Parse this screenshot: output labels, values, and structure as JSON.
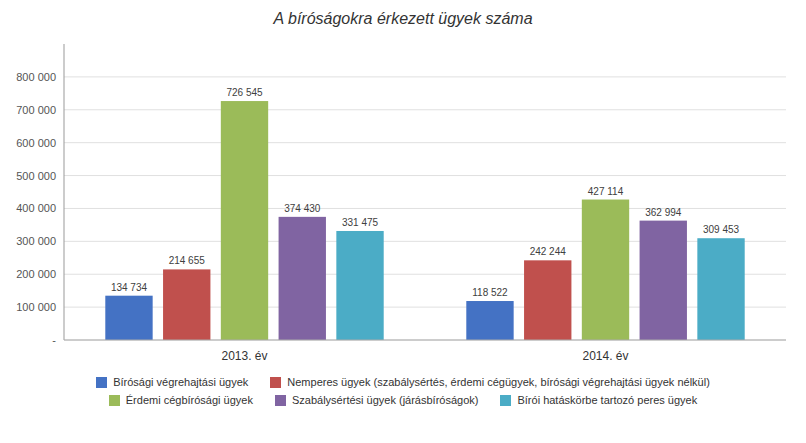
{
  "chart_data": {
    "type": "bar",
    "title": "A bíróságokra érkezett ügyek száma",
    "categories": [
      "2013. év",
      "2014. év"
    ],
    "series": [
      {
        "name": "Bírósági végrehajtási ügyek",
        "color": "#4472C4",
        "values": [
          134734,
          118522
        ],
        "value_labels": [
          "134 734",
          "118 522"
        ]
      },
      {
        "name": "Nemperes ügyek (szabálysértés, érdemi cégügyek, bírósági végrehajtási ügyek nélkül)",
        "color": "#C0504D",
        "values": [
          214655,
          242244
        ],
        "value_labels": [
          "214 655",
          "242 244"
        ]
      },
      {
        "name": "Érdemi cégbírósági ügyek",
        "color": "#9BBB59",
        "values": [
          726545,
          427114
        ],
        "value_labels": [
          "726 545",
          "427 114"
        ]
      },
      {
        "name": "Szabálysértési ügyek (járásbíróságok)",
        "color": "#8064A2",
        "values": [
          374430,
          362994
        ],
        "value_labels": [
          "374 430",
          "362 994"
        ]
      },
      {
        "name": "Bírói hatáskörbe tartozó peres ügyek",
        "color": "#4BACC6",
        "values": [
          331475,
          309453
        ],
        "value_labels": [
          "331 475",
          "309 453"
        ]
      }
    ],
    "ylim": [
      0,
      900000
    ],
    "yticks": [
      {
        "value": 0,
        "label": "-"
      },
      {
        "value": 100000,
        "label": "100 000"
      },
      {
        "value": 200000,
        "label": "200 000"
      },
      {
        "value": 300000,
        "label": "300 000"
      },
      {
        "value": 400000,
        "label": "400 000"
      },
      {
        "value": 500000,
        "label": "500 000"
      },
      {
        "value": 600000,
        "label": "600 000"
      },
      {
        "value": 700000,
        "label": "700 000"
      },
      {
        "value": 800000,
        "label": "800 000"
      }
    ],
    "grid": true,
    "legend": "bottom",
    "data_labels": true
  }
}
